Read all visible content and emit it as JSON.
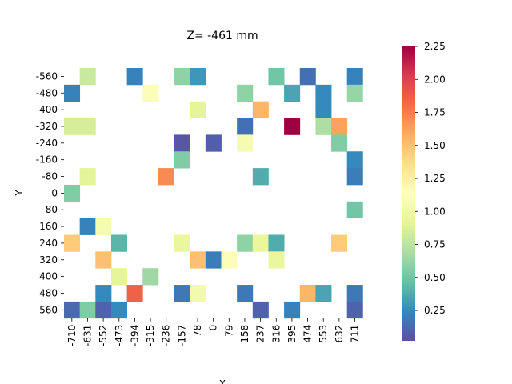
{
  "chart_data": {
    "type": "heatmap",
    "title": "Z= -461 mm",
    "xlabel": "X",
    "ylabel": "Y",
    "x_categories": [
      "-710",
      "-631",
      "-552",
      "-473",
      "-394",
      "-315",
      "-236",
      "-157",
      "-78",
      "0",
      "79",
      "158",
      "237",
      "316",
      "395",
      "474",
      "553",
      "632",
      "711"
    ],
    "y_categories": [
      "-560",
      "-480",
      "-400",
      "-320",
      "-240",
      "-160",
      "-80",
      "0",
      "80",
      "160",
      "240",
      "320",
      "400",
      "480",
      "560"
    ],
    "colorbar": {
      "min": 0.02,
      "max": 2.25,
      "colormap": "Spectral_r",
      "ticks": [
        "0.25",
        "0.50",
        "0.75",
        "1.00",
        "1.25",
        "1.50",
        "1.75",
        "2.00",
        "2.25"
      ]
    },
    "cells": [
      {
        "x": "-631",
        "y": "-560",
        "value": 0.8
      },
      {
        "x": "-394",
        "y": "-560",
        "value": 0.22
      },
      {
        "x": "-157",
        "y": "-560",
        "value": 0.6
      },
      {
        "x": "-78",
        "y": "-560",
        "value": 0.3
      },
      {
        "x": "316",
        "y": "-560",
        "value": 0.5
      },
      {
        "x": "474",
        "y": "-560",
        "value": 0.15
      },
      {
        "x": "711",
        "y": "-560",
        "value": 0.22
      },
      {
        "x": "-710",
        "y": "-480",
        "value": 0.22
      },
      {
        "x": "-315",
        "y": "-480",
        "value": 1.1
      },
      {
        "x": "158",
        "y": "-480",
        "value": 0.6
      },
      {
        "x": "395",
        "y": "-480",
        "value": 0.35
      },
      {
        "x": "553",
        "y": "-480",
        "value": 0.25
      },
      {
        "x": "711",
        "y": "-480",
        "value": 0.62
      },
      {
        "x": "-78",
        "y": "-400",
        "value": 0.92
      },
      {
        "x": "237",
        "y": "-400",
        "value": 1.55
      },
      {
        "x": "553",
        "y": "-400",
        "value": 0.25
      },
      {
        "x": "-710",
        "y": "-320",
        "value": 0.85
      },
      {
        "x": "-631",
        "y": "-320",
        "value": 0.85
      },
      {
        "x": "158",
        "y": "-320",
        "value": 0.15
      },
      {
        "x": "395",
        "y": "-320",
        "value": 2.25
      },
      {
        "x": "553",
        "y": "-320",
        "value": 0.7
      },
      {
        "x": "632",
        "y": "-320",
        "value": 1.62
      },
      {
        "x": "-157",
        "y": "-240",
        "value": 0.05
      },
      {
        "x": "0",
        "y": "-240",
        "value": 0.08
      },
      {
        "x": "158",
        "y": "-240",
        "value": 1.05
      },
      {
        "x": "632",
        "y": "-240",
        "value": 0.55
      },
      {
        "x": "-157",
        "y": "-160",
        "value": 0.55
      },
      {
        "x": "711",
        "y": "-160",
        "value": 0.25
      },
      {
        "x": "-631",
        "y": "-80",
        "value": 0.9
      },
      {
        "x": "-236",
        "y": "-80",
        "value": 1.7
      },
      {
        "x": "237",
        "y": "-80",
        "value": 0.38
      },
      {
        "x": "711",
        "y": "-80",
        "value": 0.2
      },
      {
        "x": "-710",
        "y": "0",
        "value": 0.55
      },
      {
        "x": "711",
        "y": "80",
        "value": 0.5
      },
      {
        "x": "-631",
        "y": "160",
        "value": 0.22
      },
      {
        "x": "-552",
        "y": "160",
        "value": 1.05
      },
      {
        "x": "-710",
        "y": "240",
        "value": 1.45
      },
      {
        "x": "-473",
        "y": "240",
        "value": 0.42
      },
      {
        "x": "-157",
        "y": "240",
        "value": 0.95
      },
      {
        "x": "158",
        "y": "240",
        "value": 0.6
      },
      {
        "x": "237",
        "y": "240",
        "value": 0.95
      },
      {
        "x": "316",
        "y": "240",
        "value": 0.38
      },
      {
        "x": "632",
        "y": "240",
        "value": 1.45
      },
      {
        "x": "-552",
        "y": "320",
        "value": 1.5
      },
      {
        "x": "-78",
        "y": "320",
        "value": 1.5
      },
      {
        "x": "0",
        "y": "320",
        "value": 0.2
      },
      {
        "x": "79",
        "y": "320",
        "value": 1.1
      },
      {
        "x": "316",
        "y": "320",
        "value": 0.95
      },
      {
        "x": "-473",
        "y": "400",
        "value": 0.92
      },
      {
        "x": "-315",
        "y": "400",
        "value": 0.65
      },
      {
        "x": "-552",
        "y": "480",
        "value": 0.25
      },
      {
        "x": "-394",
        "y": "480",
        "value": 1.85
      },
      {
        "x": "-157",
        "y": "480",
        "value": 0.18
      },
      {
        "x": "-78",
        "y": "480",
        "value": 1.02
      },
      {
        "x": "158",
        "y": "480",
        "value": 0.18
      },
      {
        "x": "474",
        "y": "480",
        "value": 1.55
      },
      {
        "x": "553",
        "y": "480",
        "value": 0.35
      },
      {
        "x": "711",
        "y": "480",
        "value": 0.18
      },
      {
        "x": "-710",
        "y": "560",
        "value": 0.12
      },
      {
        "x": "-631",
        "y": "560",
        "value": 0.55
      },
      {
        "x": "-552",
        "y": "560",
        "value": 0.1
      },
      {
        "x": "-473",
        "y": "560",
        "value": 0.25
      },
      {
        "x": "237",
        "y": "560",
        "value": 0.1
      },
      {
        "x": "395",
        "y": "560",
        "value": 0.22
      },
      {
        "x": "711",
        "y": "560",
        "value": 0.1
      }
    ]
  }
}
